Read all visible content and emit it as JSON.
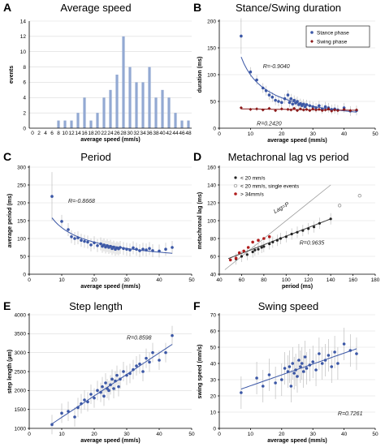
{
  "chart_data": [
    {
      "id": "A",
      "panel_letter": "A",
      "type": "bar",
      "title": "Average speed",
      "xlabel": "average speed (mm/s)",
      "ylabel": "events",
      "ylim": [
        0,
        14
      ],
      "yticks": [
        0,
        2,
        4,
        6,
        8,
        10,
        12,
        14
      ],
      "categories": [
        "0",
        "2",
        "4",
        "6",
        "8",
        "10",
        "12",
        "14",
        "16",
        "18",
        "20",
        "22",
        "24",
        "26",
        "28",
        "30",
        "32",
        "34",
        "36",
        "38",
        "40",
        "42",
        "44",
        "46",
        "48"
      ],
      "values": [
        0,
        0,
        0,
        0,
        1,
        1,
        1,
        2,
        4,
        1,
        2,
        4,
        5,
        7,
        12,
        8,
        6,
        6,
        8,
        4,
        5,
        4,
        2,
        1,
        1
      ],
      "colors": {
        "bar": "#93a9d3"
      }
    },
    {
      "id": "B",
      "panel_letter": "B",
      "type": "scatter",
      "title": "Stance/Swing duration",
      "xlabel": "average speed (mm/s)",
      "ylabel": "duration (ms)",
      "xlim": [
        0,
        50
      ],
      "ylim": [
        0,
        200
      ],
      "xticks": [
        0,
        10,
        20,
        30,
        40,
        50
      ],
      "yticks": [
        0,
        50,
        100,
        150,
        200
      ],
      "legend": {
        "position": "top-right",
        "entries": [
          "Stance phase",
          "Swing phase"
        ]
      },
      "annotations": [
        {
          "text": "R=-0.9040"
        },
        {
          "text": "R=0.2420"
        }
      ],
      "series": [
        {
          "name": "Stance phase",
          "color": "#3b57a6",
          "x": [
            7,
            10,
            12,
            14,
            15,
            16,
            17,
            18,
            19,
            20,
            21,
            22,
            22.5,
            23,
            23.5,
            24,
            24.5,
            25,
            25.5,
            26,
            26.5,
            27,
            27.5,
            28,
            29,
            30,
            31,
            32,
            33,
            34,
            35,
            36,
            37,
            38,
            40,
            42,
            44
          ],
          "y": [
            172,
            105,
            90,
            75,
            70,
            62,
            58,
            52,
            50,
            48,
            55,
            62,
            48,
            55,
            45,
            52,
            47,
            50,
            44,
            46,
            42,
            45,
            40,
            44,
            42,
            40,
            38,
            42,
            36,
            40,
            38,
            35,
            36,
            34,
            38,
            32,
            33
          ]
        },
        {
          "name": "Swing phase",
          "color": "#8b1a1a",
          "x": [
            7,
            10,
            12,
            14,
            16,
            18,
            20,
            22,
            23,
            24,
            25,
            26,
            27,
            28,
            29,
            30,
            31,
            32,
            33,
            34,
            35,
            36,
            37,
            38,
            40,
            42,
            44
          ],
          "y": [
            38,
            35,
            36,
            34,
            37,
            33,
            36,
            35,
            34,
            37,
            33,
            36,
            34,
            35,
            33,
            36,
            34,
            35,
            33,
            34,
            36,
            32,
            34,
            33,
            35,
            33,
            34
          ]
        }
      ]
    },
    {
      "id": "C",
      "panel_letter": "C",
      "type": "scatter",
      "title": "Period",
      "xlabel": "average speed (mm/s)",
      "ylabel": "average period (ms)",
      "xlim": [
        0,
        50
      ],
      "ylim": [
        0,
        300
      ],
      "xticks": [
        0,
        10,
        20,
        30,
        40,
        50
      ],
      "yticks": [
        0,
        50,
        100,
        150,
        200,
        250,
        300
      ],
      "annotations": [
        {
          "text": "R=-0.8668"
        }
      ],
      "series": [
        {
          "color": "#3b57a6",
          "x": [
            7,
            10,
            12,
            13,
            14,
            15,
            16,
            17,
            18,
            19,
            20,
            21,
            22,
            22.5,
            23,
            23.5,
            24,
            24.5,
            25,
            25.5,
            26,
            26.5,
            27,
            27.5,
            28,
            29,
            30,
            31,
            32,
            33,
            34,
            35,
            36,
            37,
            38,
            40,
            42,
            44
          ],
          "y": [
            218,
            148,
            125,
            105,
            100,
            102,
            95,
            92,
            90,
            82,
            88,
            80,
            85,
            78,
            82,
            76,
            80,
            75,
            78,
            72,
            76,
            70,
            74,
            71,
            75,
            72,
            70,
            68,
            74,
            70,
            66,
            70,
            68,
            72,
            66,
            65,
            70,
            75
          ]
        }
      ]
    },
    {
      "id": "D",
      "panel_letter": "D",
      "type": "scatter",
      "title": "Metachronal lag vs period",
      "xlabel": "period (ms)",
      "ylabel": "metachronal lag (ms)",
      "xlim": [
        40,
        180
      ],
      "ylim": [
        40,
        160
      ],
      "xticks": [
        40,
        60,
        80,
        100,
        120,
        140,
        160,
        180
      ],
      "yticks": [
        40,
        60,
        80,
        100,
        120,
        140,
        160
      ],
      "legend": {
        "position": "top-left",
        "entries": [
          "< 20 mm/s",
          "< 20 mm/s, single events",
          "> 34mm/s"
        ]
      },
      "annotations": [
        {
          "text": "R=0.9635"
        },
        {
          "text": "Lag=P"
        }
      ],
      "series": [
        {
          "name": "< 20 mm/s",
          "color": "#222222",
          "x": [
            55,
            60,
            65,
            70,
            72,
            75,
            78,
            80,
            85,
            88,
            92,
            95,
            100,
            105,
            110,
            115,
            120,
            125,
            130,
            140
          ],
          "y": [
            57,
            60,
            62,
            65,
            67,
            68,
            70,
            71,
            74,
            76,
            78,
            80,
            82,
            85,
            87,
            89,
            91,
            93,
            97,
            102
          ]
        },
        {
          "name": "< 20 mm/s, single events",
          "color": "#888888",
          "x": [
            148,
            166
          ],
          "y": [
            117,
            128
          ]
        },
        {
          "name": "> 34mm/s",
          "color": "#b01c1c",
          "x": [
            50,
            55,
            58,
            62,
            66,
            70,
            75,
            80,
            85
          ],
          "y": [
            56,
            58,
            64,
            66,
            70,
            76,
            78,
            80,
            82
          ]
        }
      ]
    },
    {
      "id": "E",
      "panel_letter": "E",
      "type": "scatter",
      "title": "Step length",
      "xlabel": "average speed (mm/s)",
      "ylabel": "step length (µm)",
      "xlim": [
        0,
        50
      ],
      "ylim": [
        1000,
        4000
      ],
      "xticks": [
        0,
        10,
        20,
        30,
        40,
        50
      ],
      "yticks": [
        1000,
        1500,
        2000,
        2500,
        3000,
        3500,
        4000
      ],
      "annotations": [
        {
          "text": "R=0.8598"
        }
      ],
      "series": [
        {
          "color": "#3b57a6",
          "x": [
            7,
            10,
            12,
            14,
            15,
            16,
            17,
            18,
            19,
            20,
            21,
            22,
            22.5,
            23,
            23.5,
            24,
            24.5,
            25,
            25.5,
            26,
            26.5,
            27,
            27.5,
            28,
            29,
            30,
            31,
            32,
            33,
            34,
            35,
            36,
            37,
            38,
            40,
            42,
            44
          ],
          "y": [
            1100,
            1400,
            1450,
            1300,
            1550,
            1650,
            1750,
            1700,
            1900,
            1800,
            2000,
            1950,
            2100,
            1850,
            2200,
            2050,
            2000,
            2150,
            2300,
            2050,
            2250,
            2400,
            2100,
            2300,
            2500,
            2400,
            2450,
            2550,
            2650,
            2700,
            2500,
            2850,
            2750,
            3000,
            2800,
            3000,
            3450
          ]
        }
      ]
    },
    {
      "id": "F",
      "panel_letter": "F",
      "type": "scatter",
      "title": "Swing speed",
      "xlabel": "average speed (mm/s)",
      "ylabel": "swing speed (mm/s)",
      "xlim": [
        0,
        50
      ],
      "ylim": [
        0,
        70
      ],
      "xticks": [
        0,
        10,
        20,
        30,
        40,
        50
      ],
      "yticks": [
        0,
        10,
        20,
        30,
        40,
        50,
        60,
        70
      ],
      "annotations": [
        {
          "text": "R=0.7261"
        }
      ],
      "series": [
        {
          "color": "#3b57a6",
          "x": [
            7,
            12,
            14,
            16,
            18,
            20,
            21,
            22,
            22.5,
            23,
            23.5,
            24,
            24.5,
            25,
            25.5,
            26,
            26.5,
            27,
            27.5,
            28,
            29,
            30,
            31,
            32,
            33,
            34,
            35,
            36,
            37,
            38,
            40,
            42,
            44
          ],
          "y": [
            22,
            31,
            26,
            33,
            28,
            30,
            37,
            35,
            38,
            26,
            40,
            34,
            36,
            32,
            42,
            38,
            40,
            35,
            44,
            37,
            39,
            41,
            36,
            46,
            40,
            42,
            45,
            38,
            47,
            40,
            52,
            48,
            46
          ]
        }
      ]
    }
  ]
}
